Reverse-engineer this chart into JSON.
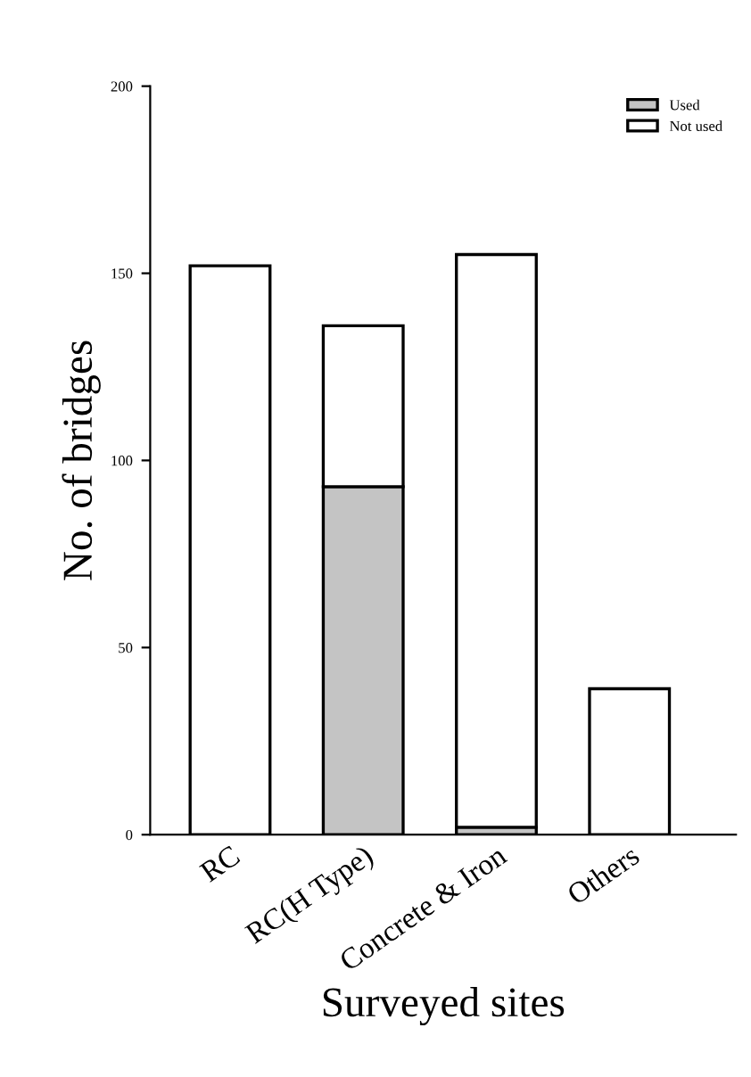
{
  "chart_data": {
    "type": "bar",
    "stacked": true,
    "xlabel": "Surveyed sites",
    "ylabel": "No. of bridges",
    "categories": [
      "RC",
      "RC(H Type)",
      "Concrete & Iron",
      "Others"
    ],
    "series": [
      {
        "name": "Used",
        "color": "#c4c4c4",
        "values": [
          null,
          93,
          2,
          0
        ]
      },
      {
        "name": "Not used",
        "color": "#ffffff",
        "values": [
          152,
          43,
          153,
          39
        ]
      }
    ],
    "ylim": [
      0,
      200
    ],
    "yticks": [
      0,
      50,
      100,
      150,
      200
    ],
    "grid": false,
    "legend": "top right"
  }
}
